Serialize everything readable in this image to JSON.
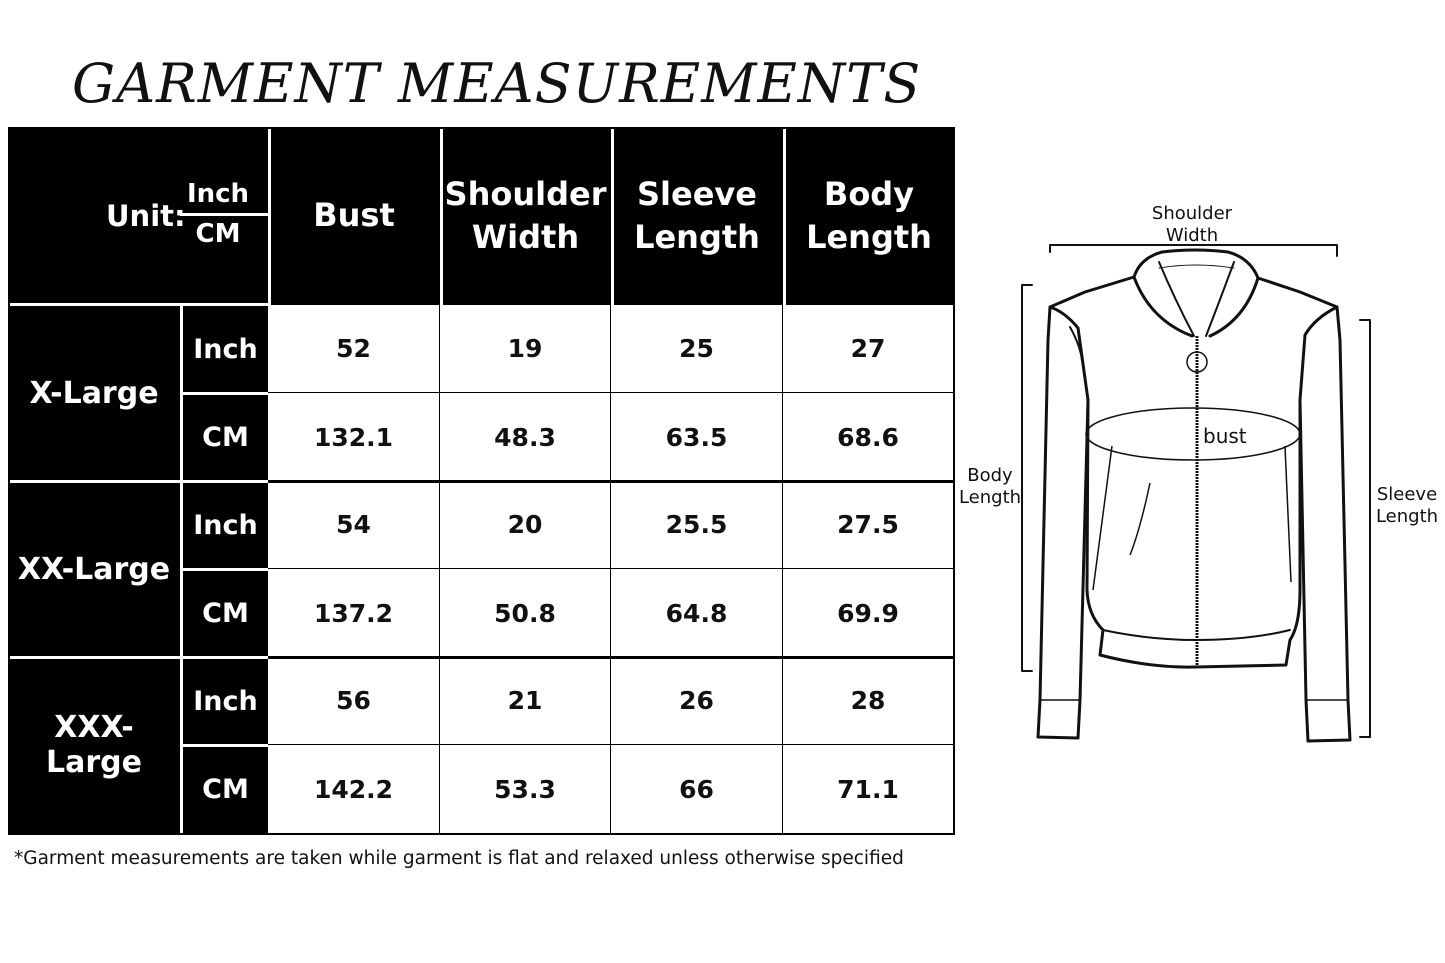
{
  "title": "GARMENT MEASUREMENTS",
  "table": {
    "unit_label": "Unit:",
    "unit_top": "Inch",
    "unit_bottom": "CM",
    "columns": [
      "Bust",
      "Shoulder Width",
      "Sleeve Length",
      "Body Length"
    ],
    "rows": [
      {
        "size": "X-Large",
        "inch_label": "Inch",
        "cm_label": "CM",
        "inch": [
          "52",
          "19",
          "25",
          "27"
        ],
        "cm": [
          "132.1",
          "48.3",
          "63.5",
          "68.6"
        ]
      },
      {
        "size": "XX-Large",
        "inch_label": "Inch",
        "cm_label": "CM",
        "inch": [
          "54",
          "20",
          "25.5",
          "27.5"
        ],
        "cm": [
          "137.2",
          "50.8",
          "64.8",
          "69.9"
        ]
      },
      {
        "size": "XXX-Large",
        "inch_label": "Inch",
        "cm_label": "CM",
        "inch": [
          "56",
          "21",
          "26",
          "28"
        ],
        "cm": [
          "142.2",
          "53.3",
          "66",
          "71.1"
        ]
      }
    ]
  },
  "note": "*Garment measurements are taken while garment is flat and relaxed unless otherwise specified",
  "diagram": {
    "shoulder_width": "Shoulder\nWidth",
    "bust": "bust",
    "body_length": "Body\nLength",
    "sleeve_length": "Sleeve\nLength"
  }
}
